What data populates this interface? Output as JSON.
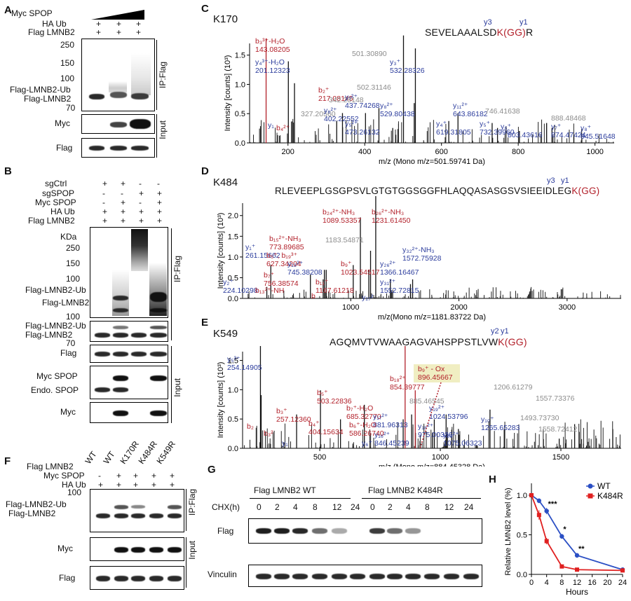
{
  "panels": {
    "A": "A",
    "B": "B",
    "C": "C",
    "D": "D",
    "E": "E",
    "F": "F",
    "G": "G",
    "H": "H"
  },
  "panelA": {
    "rows": [
      {
        "label": "Myc SPOP",
        "vals": [
          "",
          "",
          ""
        ]
      },
      {
        "label": "HA Ub",
        "vals": [
          "+",
          "+",
          "+"
        ]
      },
      {
        "label": "Flag LMNB2",
        "vals": [
          "+",
          "+",
          "+"
        ]
      }
    ],
    "mw": [
      "250",
      "150",
      "100",
      "70"
    ],
    "band_labels": [
      "Flag-LMNB2-Ub",
      "Flag-LMNB2"
    ],
    "blots": [
      "Myc",
      "Flag"
    ],
    "ip": "IP:Flag",
    "input": "Input"
  },
  "panelB": {
    "rows": [
      {
        "label": "sgCtrl",
        "vals": [
          "+",
          "+",
          "-",
          "-"
        ]
      },
      {
        "label": "sgSPOP",
        "vals": [
          "-",
          "-",
          "+",
          "+"
        ]
      },
      {
        "label": "Myc SPOP",
        "vals": [
          "-",
          "+",
          "-",
          "+"
        ]
      },
      {
        "label": "HA Ub",
        "vals": [
          "+",
          "+",
          "+",
          "+"
        ]
      },
      {
        "label": "Flag LMNB2",
        "vals": [
          "+",
          "+",
          "+",
          "+"
        ]
      }
    ],
    "kda": "KDa",
    "mw1": [
      "250",
      "150",
      "100"
    ],
    "mw2": [
      "100",
      "70"
    ],
    "band_labels1": [
      "Flag-LMNB2-Ub",
      "Flag-LMNB2"
    ],
    "band_labels2": [
      "Flag-LMNB2-Ub",
      "Flag-LMNB2"
    ],
    "flag": "Flag",
    "myc_spop": "Myc SPOP",
    "endo": "Endo. SPOP",
    "myc": "Myc",
    "ip": "IP:Flag",
    "input": "Input"
  },
  "panelF": {
    "col_header": [
      "WT",
      "WT",
      "K170R",
      "K484R",
      "K549R"
    ],
    "rows": [
      {
        "label": "Flag LMNB2",
        "vals": [
          "",
          "",
          "",
          "",
          ""
        ]
      },
      {
        "label": "Myc SPOP",
        "vals": [
          "-",
          "+",
          "+",
          "+",
          "+"
        ]
      },
      {
        "label": "HA Ub",
        "vals": [
          "+",
          "+",
          "+",
          "+",
          "+"
        ]
      }
    ],
    "mw": [
      "100"
    ],
    "band_labels": [
      "Flag-LMNB2-Ub",
      "Flag-LMNB2"
    ],
    "myc": "Myc",
    "flag": "Flag",
    "ip": "IP:Flag",
    "input": "Input"
  },
  "panelG": {
    "group1": "Flag LMNB2 WT",
    "group2": "Flag LMNB2 K484R",
    "chx_label": "CHX(h)",
    "times": [
      "0",
      "2",
      "4",
      "8",
      "12",
      "24",
      "0",
      "2",
      "4",
      "8",
      "12",
      "24"
    ],
    "flag": "Flag",
    "vinculin": "Vinculin"
  },
  "panelC": {
    "site": "K170",
    "seq_main": "SEVELAAALSD",
    "seq_mod": "K(GG)",
    "seq_end": "R",
    "ions_top": [
      "y3",
      "y1"
    ],
    "ylabel": "Intensity [counts] (10³)",
    "xlabel": "m/z (Mono m/z=501.59741 Da)",
    "yticks": [
      "1.5",
      "1.0",
      "0.5",
      "0.0"
    ],
    "xticks": [
      "200",
      "400",
      "600",
      "800",
      "1000"
    ],
    "annotations": [
      {
        "t": "b₃³⁺-H₂O",
        "c": "red"
      },
      {
        "t": "143.08205",
        "c": "red"
      },
      {
        "t": "y₄³⁺-H₂O",
        "c": "blue"
      },
      {
        "t": "201.12323",
        "c": "blue"
      },
      {
        "t": "b₂⁺",
        "c": "red"
      },
      {
        "t": "217.08145",
        "c": "red"
      },
      {
        "t": "501.30890",
        "c": "grey"
      },
      {
        "t": "y₃⁺",
        "c": "blue"
      },
      {
        "t": "532.28326",
        "c": "blue"
      },
      {
        "t": "342.20148",
        "c": "grey"
      },
      {
        "t": "502.31146",
        "c": "grey"
      },
      {
        "t": "y₇²⁺",
        "c": "blue"
      },
      {
        "t": "437.74268",
        "c": "blue"
      },
      {
        "t": "y₈²⁺",
        "c": "blue"
      },
      {
        "t": "529.80438",
        "c": "blue"
      },
      {
        "t": "327.20560",
        "c": "grey"
      },
      {
        "t": "y₆²⁺",
        "c": "blue"
      },
      {
        "t": "402.22552",
        "c": "blue"
      },
      {
        "t": "y₁₁²⁺",
        "c": "blue"
      },
      {
        "t": "643.86182",
        "c": "blue"
      },
      {
        "t": "746.41638",
        "c": "grey"
      },
      {
        "t": "888.48468",
        "c": "grey"
      },
      {
        "t": "y₁",
        "c": "blue"
      },
      {
        "t": "b₄²⁺",
        "c": "red"
      },
      {
        "t": "y₅²⁺",
        "c": "blue"
      },
      {
        "t": "473.26132",
        "c": "blue"
      },
      {
        "t": "y₄⁺",
        "c": "blue"
      },
      {
        "t": "619.31805",
        "c": "blue"
      },
      {
        "t": "y₅⁺",
        "c": "blue"
      },
      {
        "t": "732.39960",
        "c": "blue"
      },
      {
        "t": "y₆⁺",
        "c": "blue"
      },
      {
        "t": "803.43616",
        "c": "blue"
      },
      {
        "t": "y₇⁺",
        "c": "blue"
      },
      {
        "t": "874.47424",
        "c": "blue"
      },
      {
        "t": "y₈⁺",
        "c": "blue"
      },
      {
        "t": "945.51648",
        "c": "blue"
      }
    ]
  },
  "panelD": {
    "site": "K484",
    "seq_main": "RLEVEEPLGSGPSVLGTGTGGSGGFHLAQQASASGSVSIEEIDLEG",
    "seq_mod": "K(GG)",
    "ions_top": [
      "y3",
      "y1"
    ],
    "ylabel": "Intensity [counts] (10³)",
    "xlabel": "m/z(Mono m/z=1181.83722 Da)",
    "yticks": [
      "2.0",
      "1.5",
      "1.0",
      "0.5",
      "0.0"
    ],
    "xticks": [
      "1000",
      "2000",
      "3000"
    ],
    "annotations": [
      {
        "t": "b₂₄²⁺-NH₃",
        "c": "red"
      },
      {
        "t": "1089.53357",
        "c": "red"
      },
      {
        "t": "b₂₆²⁺-NH₃",
        "c": "red"
      },
      {
        "t": "1231.61450",
        "c": "red"
      },
      {
        "t": "b₁₅²⁺-NH₃",
        "c": "red"
      },
      {
        "t": "773.89685",
        "c": "red"
      },
      {
        "t": "y₁⁺",
        "c": "blue"
      },
      {
        "t": "261.15662",
        "c": "blue"
      },
      {
        "t": "b₅⁺, b₁₉³⁺",
        "c": "red"
      },
      {
        "t": "627.34204",
        "c": "red"
      },
      {
        "t": "1183.54871",
        "c": "grey"
      },
      {
        "t": "y₃₂²⁺-NH₃",
        "c": "blue"
      },
      {
        "t": "1572.75928",
        "c": "blue"
      },
      {
        "t": "y₁₃²⁺",
        "c": "blue"
      },
      {
        "t": "745.38208",
        "c": "blue"
      },
      {
        "t": "b₉⁺",
        "c": "red"
      },
      {
        "t": "1023.54517",
        "c": "red"
      },
      {
        "t": "y₂₆²⁺",
        "c": "blue"
      },
      {
        "t": "1366.16467",
        "c": "blue"
      },
      {
        "t": "y₂⁺",
        "c": "blue"
      },
      {
        "t": "224.10298",
        "c": "blue"
      },
      {
        "t": "b₇⁺",
        "c": "red"
      },
      {
        "t": "756.38574",
        "c": "red"
      },
      {
        "t": "b₁₁⁺",
        "c": "red"
      },
      {
        "t": "1167.61218",
        "c": "red"
      },
      {
        "t": "y₃₁²⁺",
        "c": "blue"
      },
      {
        "t": "1552.72815",
        "c": "blue"
      },
      {
        "t": "b₁₃²⁺-NH",
        "c": "red"
      },
      {
        "t": "b",
        "c": "red"
      },
      {
        "t": "y₂₇²",
        "c": "blue"
      }
    ]
  },
  "panelE": {
    "site": "K549",
    "seq_main": "AGQMVTVWAAGAGVAHSPPSTLVW",
    "seq_mod": "K(GG)",
    "ions_top": [
      "y2",
      "y1"
    ],
    "ylabel": "Intensity [counts] (10³)",
    "xlabel": "m/z (Mono m/z=884.45328 Da)",
    "yticks": [
      "1.5",
      "1.0",
      "0.5",
      "0.0"
    ],
    "xticks": [
      "500",
      "1000",
      "1500"
    ],
    "annotations": [
      {
        "t": "y₅³⁺",
        "c": "blue"
      },
      {
        "t": "254.14905",
        "c": "blue"
      },
      {
        "t": "b₉⁺ - Ox",
        "c": "red"
      },
      {
        "t": "896.45667",
        "c": "red"
      },
      {
        "t": "b₁₈²⁺",
        "c": "red"
      },
      {
        "t": "854.39777",
        "c": "red"
      },
      {
        "t": "b₅⁺",
        "c": "red"
      },
      {
        "t": "503.22836",
        "c": "red"
      },
      {
        "t": "885.46545",
        "c": "grey"
      },
      {
        "t": "1206.61279",
        "c": "grey"
      },
      {
        "t": "1557.73376",
        "c": "grey"
      },
      {
        "t": "b₃⁺",
        "c": "red"
      },
      {
        "t": "257.12360",
        "c": "red"
      },
      {
        "t": "b₇⁺-H₂O",
        "c": "red"
      },
      {
        "t": "685.32770",
        "c": "red"
      },
      {
        "t": "y₁₉²⁺",
        "c": "blue"
      },
      {
        "t": "1024.53796",
        "c": "blue"
      },
      {
        "t": "y₁₇²⁺",
        "c": "blue"
      },
      {
        "t": "881.96313",
        "c": "blue"
      },
      {
        "t": "y₁₀⁺",
        "c": "blue"
      },
      {
        "t": "1265.65283",
        "c": "blue"
      },
      {
        "t": "1493.73730",
        "c": "grey"
      },
      {
        "t": "b₄⁺",
        "c": "red"
      },
      {
        "t": "404.15634",
        "c": "red"
      },
      {
        "t": "b₆⁺-H₂O",
        "c": "red"
      },
      {
        "t": "586.26740",
        "c": "red"
      },
      {
        "t": "y₁₆²⁺",
        "c": "blue"
      },
      {
        "t": "846.45239",
        "c": "blue"
      },
      {
        "t": "y₁₈²⁺",
        "c": "blue"
      },
      {
        "t": "975.00336",
        "c": "blue"
      },
      {
        "t": "y₂₀²⁺",
        "c": "blue"
      },
      {
        "t": "1075.06323",
        "c": "blue"
      },
      {
        "t": "1558.72412",
        "c": "grey"
      },
      {
        "t": "b₂",
        "c": "red"
      },
      {
        "t": "b₃²",
        "c": "red"
      },
      {
        "t": "y₁",
        "c": "blue"
      },
      {
        "t": "y₆⁺",
        "c": "blue"
      }
    ]
  },
  "chart_data": {
    "type": "line",
    "xlabel": "Hours",
    "ylabel": "Relative LMNB2 level (%)",
    "x": [
      0,
      2,
      4,
      8,
      12,
      24
    ],
    "xticks": [
      "0",
      "4",
      "8",
      "12",
      "16",
      "20",
      "24"
    ],
    "yticks": [
      "1.0",
      "0.5",
      "0.0"
    ],
    "xlim": [
      0,
      24
    ],
    "ylim": [
      0,
      1.15
    ],
    "series": [
      {
        "name": "WT",
        "color": "#2b4fc4",
        "values": [
          1.0,
          0.93,
          0.8,
          0.48,
          0.24,
          0.06
        ],
        "err": [
          0,
          0.03,
          0.04,
          0.03,
          0.03,
          0.01
        ]
      },
      {
        "name": "K484R",
        "color": "#e02020",
        "values": [
          1.0,
          0.75,
          0.42,
          0.1,
          0.06,
          0.05
        ],
        "err": [
          0,
          0.06,
          0.04,
          0.02,
          0.01,
          0.01
        ]
      }
    ],
    "significance": [
      "***",
      "*",
      "**"
    ]
  }
}
